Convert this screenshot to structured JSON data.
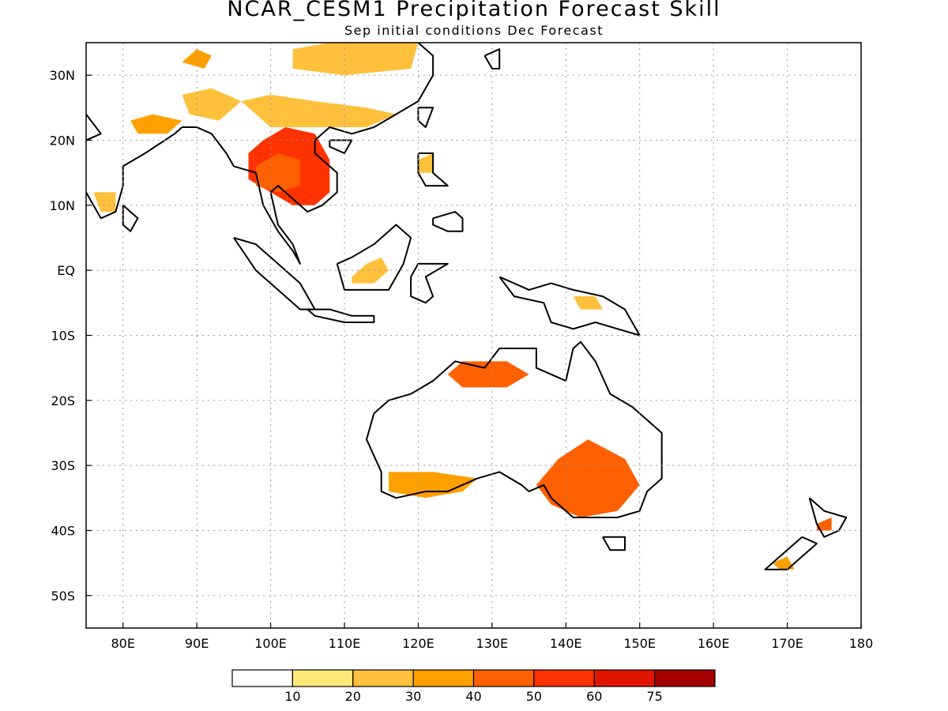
{
  "title": "NCAR_CESM1  Precipitation Forecast Skill",
  "subtitle": "Sep initial conditions  Dec Forecast",
  "map": {
    "lon_range": [
      75,
      180
    ],
    "lat_range": [
      -55,
      35
    ],
    "grid": true,
    "lat_ticks": [
      {
        "value": 30,
        "label": "30N"
      },
      {
        "value": 20,
        "label": "20N"
      },
      {
        "value": 10,
        "label": "10N"
      },
      {
        "value": 0,
        "label": "EQ"
      },
      {
        "value": -10,
        "label": "10S"
      },
      {
        "value": -20,
        "label": "20S"
      },
      {
        "value": -30,
        "label": "30S"
      },
      {
        "value": -40,
        "label": "40S"
      },
      {
        "value": -50,
        "label": "50S"
      }
    ],
    "lon_ticks": [
      {
        "value": 80,
        "label": "80E"
      },
      {
        "value": 90,
        "label": "90E"
      },
      {
        "value": 100,
        "label": "100E"
      },
      {
        "value": 110,
        "label": "110E"
      },
      {
        "value": 120,
        "label": "120E"
      },
      {
        "value": 130,
        "label": "130E"
      },
      {
        "value": 140,
        "label": "140E"
      },
      {
        "value": 150,
        "label": "150E"
      },
      {
        "value": 160,
        "label": "160E"
      },
      {
        "value": 170,
        "label": "170E"
      },
      {
        "value": 180,
        "label": "180"
      }
    ]
  },
  "colorbar": {
    "levels": [
      "10",
      "20",
      "30",
      "40",
      "50",
      "60",
      "75"
    ],
    "colors": [
      "#ffffff",
      "#ffe878",
      "#ffc03c",
      "#ffa000",
      "#ff6000",
      "#ff3200",
      "#e11400",
      "#a50000"
    ]
  },
  "skill_regions": [
    {
      "name": "southeast-asia",
      "level": 5,
      "points": [
        [
          97,
          18
        ],
        [
          99,
          20
        ],
        [
          102,
          22
        ],
        [
          106,
          21
        ],
        [
          108,
          17
        ],
        [
          108,
          12
        ],
        [
          106,
          10
        ],
        [
          103,
          10
        ],
        [
          100,
          12
        ],
        [
          97,
          14
        ]
      ]
    },
    {
      "name": "southeast-asia-core",
      "level": 4,
      "points": [
        [
          98,
          16
        ],
        [
          101,
          18
        ],
        [
          104,
          17
        ],
        [
          104,
          13
        ],
        [
          101,
          12
        ],
        [
          98,
          13
        ]
      ]
    },
    {
      "name": "south-china",
      "level": 2,
      "points": [
        [
          96,
          26
        ],
        [
          100,
          27
        ],
        [
          106,
          26
        ],
        [
          113,
          25
        ],
        [
          117,
          24
        ],
        [
          113,
          22
        ],
        [
          106,
          22
        ],
        [
          100,
          22
        ]
      ]
    },
    {
      "name": "north-china",
      "level": 2,
      "points": [
        [
          103,
          34
        ],
        [
          108,
          35
        ],
        [
          120,
          35
        ],
        [
          119,
          31
        ],
        [
          110,
          30
        ],
        [
          103,
          31
        ]
      ]
    },
    {
      "name": "bay-of-bengal-land",
      "level": 3,
      "points": [
        [
          81,
          23
        ],
        [
          84,
          24
        ],
        [
          88,
          23
        ],
        [
          86,
          21
        ],
        [
          82,
          21
        ]
      ]
    },
    {
      "name": "ne-india",
      "level": 2,
      "points": [
        [
          88,
          27
        ],
        [
          92,
          28
        ],
        [
          96,
          26
        ],
        [
          93,
          23
        ],
        [
          89,
          24
        ]
      ]
    },
    {
      "name": "tibet-patch",
      "level": 3,
      "points": [
        [
          88,
          32
        ],
        [
          90,
          34
        ],
        [
          92,
          33
        ],
        [
          91,
          31
        ]
      ]
    },
    {
      "name": "north-australia",
      "level": 4,
      "points": [
        [
          124,
          -16
        ],
        [
          126,
          -14
        ],
        [
          132,
          -14
        ],
        [
          135,
          -16
        ],
        [
          132,
          -18
        ],
        [
          126,
          -18
        ]
      ]
    },
    {
      "name": "se-australia",
      "level": 4,
      "points": [
        [
          136,
          -33
        ],
        [
          139,
          -29
        ],
        [
          143,
          -26
        ],
        [
          148,
          -29
        ],
        [
          150,
          -33
        ],
        [
          147,
          -37
        ],
        [
          142,
          -38
        ],
        [
          138,
          -36
        ]
      ]
    },
    {
      "name": "sw-australia",
      "level": 3,
      "points": [
        [
          116,
          -31
        ],
        [
          122,
          -31
        ],
        [
          128,
          -32
        ],
        [
          126,
          -34
        ],
        [
          121,
          -35
        ],
        [
          116,
          -34
        ]
      ]
    },
    {
      "name": "borneo",
      "level": 2,
      "points": [
        [
          111,
          -1
        ],
        [
          113,
          1
        ],
        [
          115,
          2
        ],
        [
          116,
          0
        ],
        [
          114,
          -2
        ],
        [
          111,
          -2
        ]
      ]
    },
    {
      "name": "new-guinea",
      "level": 2,
      "points": [
        [
          141,
          -4
        ],
        [
          144,
          -4
        ],
        [
          145,
          -6
        ],
        [
          142,
          -6
        ]
      ]
    },
    {
      "name": "new-zealand-north",
      "level": 4,
      "points": [
        [
          174,
          -39
        ],
        [
          176,
          -38
        ],
        [
          176,
          -40
        ],
        [
          174,
          -40
        ]
      ]
    },
    {
      "name": "new-zealand-south",
      "level": 3,
      "points": [
        [
          168,
          -45
        ],
        [
          170,
          -44
        ],
        [
          171,
          -46
        ],
        [
          169,
          -46
        ]
      ]
    },
    {
      "name": "philippines",
      "level": 2,
      "points": [
        [
          120,
          17
        ],
        [
          122,
          18
        ],
        [
          122,
          15
        ],
        [
          120,
          15
        ]
      ]
    },
    {
      "name": "south-india",
      "level": 2,
      "points": [
        [
          76,
          12
        ],
        [
          79,
          12
        ],
        [
          79,
          9
        ],
        [
          77,
          9
        ]
      ]
    }
  ],
  "coastlines": [
    {
      "name": "australia",
      "points": [
        [
          114,
          -22
        ],
        [
          116,
          -20
        ],
        [
          119,
          -19
        ],
        [
          122,
          -17
        ],
        [
          125,
          -14
        ],
        [
          129,
          -15
        ],
        [
          131,
          -12
        ],
        [
          136,
          -12
        ],
        [
          136,
          -15
        ],
        [
          140,
          -17
        ],
        [
          141,
          -12
        ],
        [
          142,
          -11
        ],
        [
          144,
          -14
        ],
        [
          146,
          -19
        ],
        [
          149,
          -21
        ],
        [
          153,
          -25
        ],
        [
          153,
          -28
        ],
        [
          153,
          -32
        ],
        [
          151,
          -34
        ],
        [
          150,
          -37
        ],
        [
          147,
          -38
        ],
        [
          144,
          -38
        ],
        [
          141,
          -38
        ],
        [
          138,
          -35
        ],
        [
          137,
          -33
        ],
        [
          135,
          -34
        ],
        [
          134,
          -33
        ],
        [
          131,
          -31
        ],
        [
          128,
          -32
        ],
        [
          124,
          -34
        ],
        [
          121,
          -34
        ],
        [
          117,
          -35
        ],
        [
          115,
          -34
        ],
        [
          115,
          -31
        ],
        [
          113,
          -26
        ],
        [
          114,
          -22
        ]
      ]
    },
    {
      "name": "tasmania",
      "points": [
        [
          145,
          -41
        ],
        [
          148,
          -41
        ],
        [
          148,
          -43
        ],
        [
          146,
          -43
        ],
        [
          145,
          -41
        ]
      ]
    },
    {
      "name": "new-zealand-north-island",
      "points": [
        [
          173,
          -35
        ],
        [
          175,
          -37
        ],
        [
          178,
          -38
        ],
        [
          177,
          -40
        ],
        [
          175,
          -41
        ],
        [
          174,
          -39
        ],
        [
          173,
          -35
        ]
      ]
    },
    {
      "name": "new-zealand-south-island",
      "points": [
        [
          172,
          -41
        ],
        [
          174,
          -42
        ],
        [
          172,
          -44
        ],
        [
          170,
          -46
        ],
        [
          167,
          -46
        ],
        [
          169,
          -44
        ],
        [
          172,
          -41
        ]
      ]
    },
    {
      "name": "new-guinea",
      "points": [
        [
          131,
          -1
        ],
        [
          135,
          -3
        ],
        [
          138,
          -2
        ],
        [
          141,
          -3
        ],
        [
          145,
          -4
        ],
        [
          148,
          -6
        ],
        [
          150,
          -10
        ],
        [
          147,
          -9
        ],
        [
          144,
          -8
        ],
        [
          141,
          -9
        ],
        [
          138,
          -8
        ],
        [
          137,
          -5
        ],
        [
          133,
          -4
        ],
        [
          131,
          -1
        ]
      ]
    },
    {
      "name": "borneo",
      "points": [
        [
          109,
          1
        ],
        [
          111,
          2
        ],
        [
          114,
          4
        ],
        [
          117,
          7
        ],
        [
          119,
          5
        ],
        [
          118,
          1
        ],
        [
          116,
          -3
        ],
        [
          113,
          -3
        ],
        [
          110,
          -3
        ],
        [
          109,
          1
        ]
      ]
    },
    {
      "name": "sumatra",
      "points": [
        [
          95,
          5
        ],
        [
          98,
          4
        ],
        [
          101,
          1
        ],
        [
          104,
          -2
        ],
        [
          106,
          -6
        ],
        [
          104,
          -6
        ],
        [
          101,
          -3
        ],
        [
          98,
          0
        ],
        [
          95,
          5
        ]
      ]
    },
    {
      "name": "java",
      "points": [
        [
          105,
          -6
        ],
        [
          108,
          -6
        ],
        [
          111,
          -7
        ],
        [
          114,
          -7
        ],
        [
          114,
          -8
        ],
        [
          110,
          -8
        ],
        [
          106,
          -7
        ],
        [
          105,
          -6
        ]
      ]
    },
    {
      "name": "sulawesi",
      "points": [
        [
          119,
          -1
        ],
        [
          120,
          1
        ],
        [
          124,
          1
        ],
        [
          121,
          -1
        ],
        [
          122,
          -4
        ],
        [
          121,
          -5
        ],
        [
          119,
          -4
        ],
        [
          119,
          -1
        ]
      ]
    },
    {
      "name": "mainland-asia",
      "points": [
        [
          75,
          24
        ],
        [
          77,
          21
        ],
        [
          73,
          19
        ],
        [
          73,
          15
        ],
        [
          75,
          12
        ],
        [
          77,
          8
        ],
        [
          79,
          9
        ],
        [
          80,
          13
        ],
        [
          80,
          16
        ],
        [
          83,
          18
        ],
        [
          87,
          21
        ],
        [
          88,
          22
        ],
        [
          90,
          22
        ],
        [
          92,
          21
        ],
        [
          94,
          18
        ],
        [
          95,
          16
        ],
        [
          98,
          15
        ],
        [
          99,
          10
        ],
        [
          101,
          6
        ],
        [
          103,
          3
        ],
        [
          104,
          1
        ],
        [
          103,
          4
        ],
        [
          101,
          7
        ],
        [
          100,
          12
        ],
        [
          101,
          13
        ],
        [
          103,
          11
        ],
        [
          105,
          9
        ],
        [
          107,
          10
        ],
        [
          109,
          12
        ],
        [
          109,
          15
        ],
        [
          106,
          18
        ],
        [
          106,
          20
        ],
        [
          108,
          22
        ],
        [
          111,
          21
        ],
        [
          114,
          22
        ],
        [
          117,
          24
        ],
        [
          120,
          26
        ],
        [
          122,
          30
        ],
        [
          122,
          33
        ],
        [
          120,
          35
        ]
      ]
    },
    {
      "name": "sri-lanka",
      "points": [
        [
          80,
          10
        ],
        [
          82,
          8
        ],
        [
          81,
          6
        ],
        [
          80,
          7
        ],
        [
          80,
          10
        ]
      ]
    },
    {
      "name": "hainan",
      "points": [
        [
          108,
          20
        ],
        [
          111,
          20
        ],
        [
          110,
          18
        ],
        [
          108,
          19
        ],
        [
          108,
          20
        ]
      ]
    },
    {
      "name": "taiwan",
      "points": [
        [
          120,
          25
        ],
        [
          122,
          25
        ],
        [
          121,
          22
        ],
        [
          120,
          23
        ],
        [
          120,
          25
        ]
      ]
    },
    {
      "name": "luzon",
      "points": [
        [
          120,
          18
        ],
        [
          122,
          18
        ],
        [
          122,
          15
        ],
        [
          124,
          13
        ],
        [
          121,
          13
        ],
        [
          120,
          15
        ],
        [
          120,
          18
        ]
      ]
    },
    {
      "name": "mindanao",
      "points": [
        [
          122,
          8
        ],
        [
          125,
          9
        ],
        [
          126,
          8
        ],
        [
          126,
          6
        ],
        [
          124,
          6
        ],
        [
          122,
          7
        ],
        [
          122,
          8
        ]
      ]
    },
    {
      "name": "japan-south",
      "points": [
        [
          129,
          33
        ],
        [
          131,
          34
        ],
        [
          131,
          31
        ],
        [
          130,
          31
        ],
        [
          129,
          33
        ]
      ]
    }
  ]
}
